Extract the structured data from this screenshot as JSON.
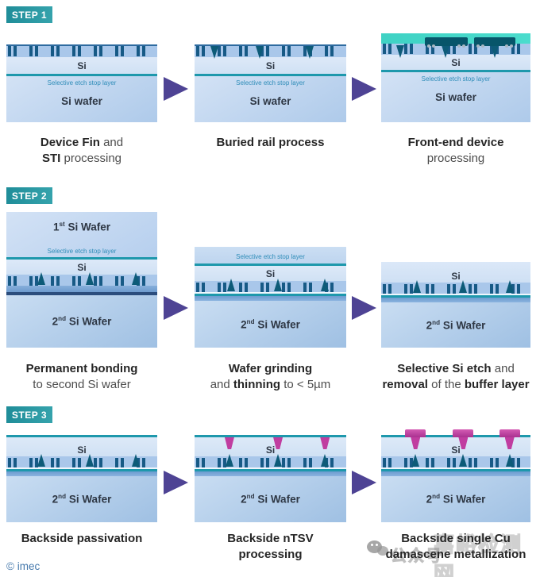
{
  "colors": {
    "badge_teal": "#2E9BA5",
    "arrow_purple": "#4E4394",
    "etch_stop_teal": "#1E98AC",
    "turquoise_layer": "#43D7C9",
    "fin_blue": "#175A86",
    "buried_rail_teal": "#0D5B78",
    "ntsv_magenta": "#C03DA0",
    "wafer_blue_light": "#D3E2F5",
    "wafer_blue": "#A2C2E4",
    "copyright_blue": "#4679AC"
  },
  "steps": [
    {
      "badge": "STEP 1",
      "panels": [
        {
          "labels": {
            "si": "Si",
            "etch": "Selective etch stop layer",
            "wafer": "Si wafer"
          },
          "caption": [
            [
              {
                "t": "Device Fin",
                "b": true
              },
              {
                "t": " and",
                "b": false
              }
            ],
            [
              {
                "t": "STI",
                "b": true
              },
              {
                "t": " processing",
                "b": false
              }
            ]
          ]
        },
        {
          "labels": {
            "si": "Si",
            "etch": "Selective etch stop layer",
            "wafer": "Si wafer"
          },
          "caption": [
            [
              {
                "t": "Buried rail process",
                "b": true
              }
            ]
          ]
        },
        {
          "labels": {
            "si": "Si",
            "etch": "Selective etch stop layer",
            "wafer": "Si wafer"
          },
          "caption": [
            [
              {
                "t": "Front-end device",
                "b": true
              }
            ],
            [
              {
                "t": "processing",
                "b": false
              }
            ]
          ]
        }
      ]
    },
    {
      "badge": "STEP 2",
      "panels": [
        {
          "labels": {
            "wafer1_pre": "1",
            "wafer1_sup": "st",
            "wafer1_post": " Si Wafer",
            "etch": "Selective etch stop layer",
            "si": "Si",
            "wafer2_pre": "2",
            "wafer2_sup": "nd",
            "wafer2_post": " Si Wafer"
          },
          "caption": [
            [
              {
                "t": "Permanent bonding",
                "b": true
              }
            ],
            [
              {
                "t": "to second Si wafer",
                "b": false
              }
            ]
          ]
        },
        {
          "labels": {
            "etch": "Selective etch stop layer",
            "si": "Si",
            "wafer2_pre": "2",
            "wafer2_sup": "nd",
            "wafer2_post": " Si Wafer"
          },
          "caption": [
            [
              {
                "t": "Wafer grinding",
                "b": true
              }
            ],
            [
              {
                "t": "and ",
                "b": false
              },
              {
                "t": "thinning",
                "b": true
              },
              {
                "t": " to < 5µm",
                "b": false
              }
            ]
          ]
        },
        {
          "labels": {
            "si": "Si",
            "wafer2_pre": "2",
            "wafer2_sup": "nd",
            "wafer2_post": " Si Wafer"
          },
          "caption": [
            [
              {
                "t": "Selective Si etch",
                "b": true
              },
              {
                "t": " and",
                "b": false
              }
            ],
            [
              {
                "t": "removal",
                "b": true
              },
              {
                "t": " of the ",
                "b": false
              },
              {
                "t": "buffer layer",
                "b": true
              }
            ]
          ]
        }
      ]
    },
    {
      "badge": "STEP 3",
      "panels": [
        {
          "labels": {
            "si": "Si",
            "wafer2_pre": "2",
            "wafer2_sup": "nd",
            "wafer2_post": " Si Wafer"
          },
          "caption": [
            [
              {
                "t": "Backside passivation",
                "b": true
              }
            ]
          ]
        },
        {
          "labels": {
            "si": "Si",
            "wafer2_pre": "2",
            "wafer2_sup": "nd",
            "wafer2_post": " Si Wafer"
          },
          "caption": [
            [
              {
                "t": "Backside nTSV",
                "b": true
              }
            ],
            [
              {
                "t": "processing",
                "b": true
              }
            ]
          ]
        },
        {
          "labels": {
            "si": "Si",
            "wafer2_pre": "2",
            "wafer2_sup": "nd",
            "wafer2_post": " Si Wafer"
          },
          "caption": [
            [
              {
                "t": "Backside single Cu",
                "b": true
              }
            ],
            [
              {
                "t": "damascene metallization",
                "b": true
              }
            ]
          ]
        }
      ]
    }
  ],
  "footer": {
    "copyright": "© imec"
  },
  "watermark": {
    "brand": "嘉峪检测网",
    "account": "公众号"
  }
}
